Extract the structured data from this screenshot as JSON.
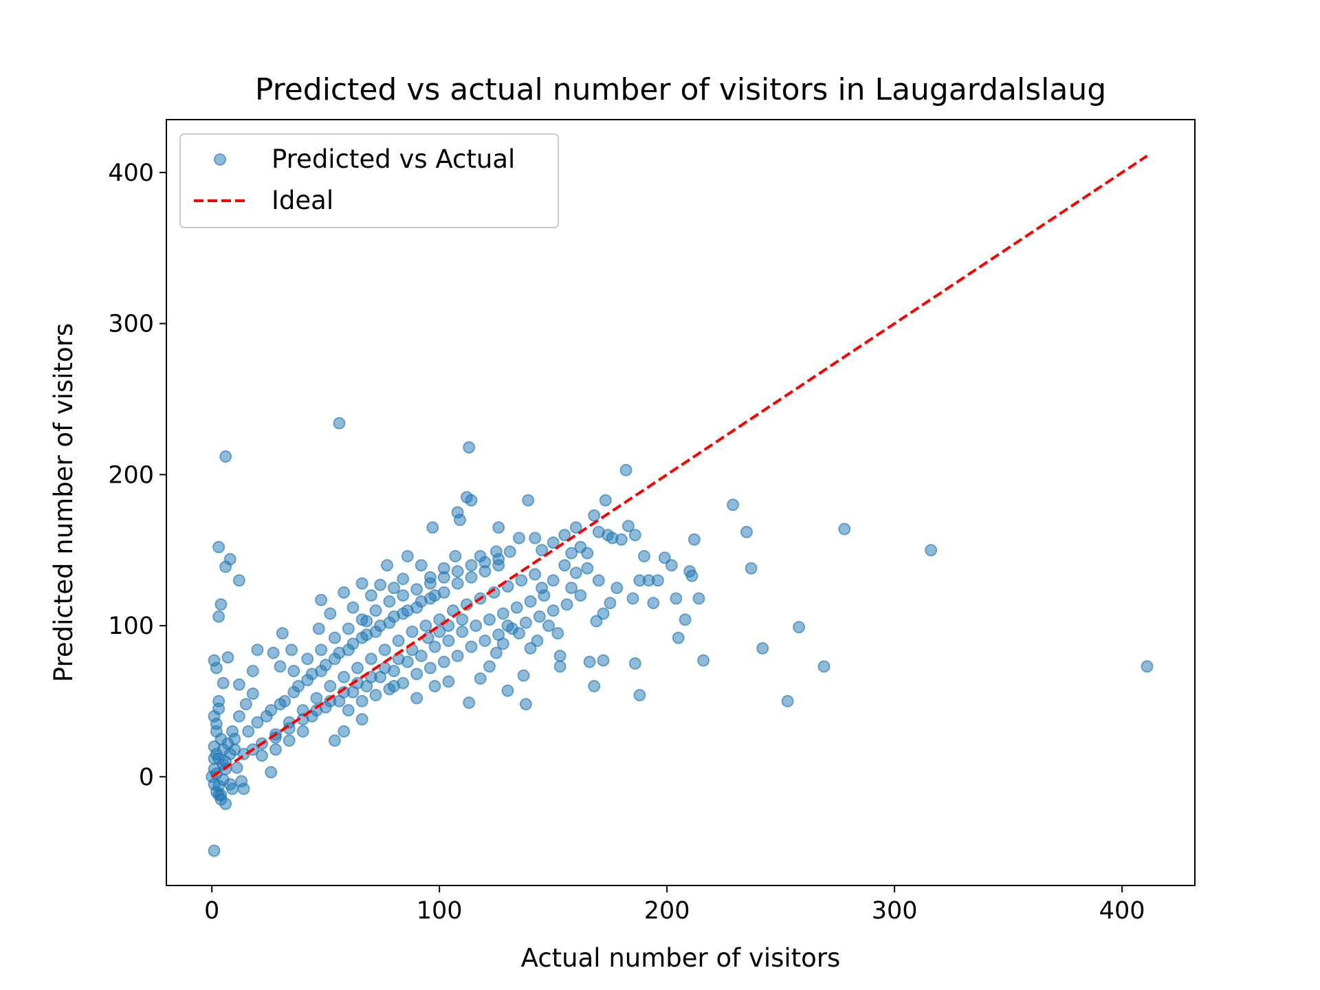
{
  "chart_data": {
    "type": "scatter",
    "title": "Predicted vs actual number of visitors in Laugardalslaug",
    "xlabel": "Actual number of visitors",
    "ylabel": "Predicted number of visitors",
    "xlim": [
      -20,
      432
    ],
    "ylim": [
      -72,
      435
    ],
    "xticks": [
      0,
      100,
      200,
      300,
      400
    ],
    "yticks": [
      0,
      100,
      200,
      300,
      400
    ],
    "legend_location": "upper-left",
    "grid": false,
    "series": [
      {
        "name": "Predicted vs Actual",
        "kind": "scatter",
        "color": "#1f77b4",
        "alpha": 0.5,
        "points": [
          [
            56,
            234
          ],
          [
            113,
            218
          ],
          [
            6,
            212
          ],
          [
            182,
            203
          ],
          [
            112,
            185
          ],
          [
            114,
            183
          ],
          [
            139,
            183
          ],
          [
            173,
            183
          ],
          [
            229,
            180
          ],
          [
            3,
            152
          ],
          [
            8,
            144
          ],
          [
            6,
            139
          ],
          [
            12,
            130
          ],
          [
            4,
            114
          ],
          [
            3,
            106
          ],
          [
            1,
            77
          ],
          [
            7,
            79
          ],
          [
            2,
            72
          ],
          [
            18,
            70
          ],
          [
            12,
            61
          ],
          [
            5,
            62
          ],
          [
            1,
            -49
          ],
          [
            2,
            -10
          ],
          [
            4,
            -15
          ],
          [
            6,
            -18
          ],
          [
            3,
            -6
          ],
          [
            1,
            20
          ],
          [
            2,
            35
          ],
          [
            3,
            50
          ],
          [
            1,
            5
          ],
          [
            5,
            8
          ],
          [
            8,
            -5
          ],
          [
            13,
            -3
          ],
          [
            14,
            -8
          ],
          [
            20,
            84
          ],
          [
            27,
            82
          ],
          [
            30,
            73
          ],
          [
            26,
            3
          ],
          [
            35,
            84
          ],
          [
            31,
            95
          ],
          [
            47,
            98
          ],
          [
            48,
            117
          ],
          [
            52,
            108
          ],
          [
            58,
            122
          ],
          [
            62,
            112
          ],
          [
            66,
            128
          ],
          [
            70,
            120
          ],
          [
            68,
            103
          ],
          [
            74,
            127
          ],
          [
            77,
            140
          ],
          [
            80,
            125
          ],
          [
            84,
            131
          ],
          [
            86,
            146
          ],
          [
            92,
            140
          ],
          [
            96,
            132
          ],
          [
            97,
            165
          ],
          [
            102,
            138
          ],
          [
            107,
            146
          ],
          [
            108,
            175
          ],
          [
            109,
            170
          ],
          [
            118,
            146
          ],
          [
            125,
            149
          ],
          [
            126,
            165
          ],
          [
            131,
            149
          ],
          [
            135,
            158
          ],
          [
            142,
            158
          ],
          [
            145,
            150
          ],
          [
            150,
            155
          ],
          [
            155,
            160
          ],
          [
            158,
            148
          ],
          [
            160,
            165
          ],
          [
            162,
            152
          ],
          [
            165,
            148
          ],
          [
            170,
            162
          ],
          [
            174,
            160
          ],
          [
            176,
            158
          ],
          [
            168,
            173
          ],
          [
            180,
            157
          ],
          [
            183,
            166
          ],
          [
            186,
            160
          ],
          [
            190,
            146
          ],
          [
            196,
            130
          ],
          [
            199,
            145
          ],
          [
            192,
            130
          ],
          [
            194,
            115
          ],
          [
            202,
            140
          ],
          [
            204,
            118
          ],
          [
            205,
            92
          ],
          [
            210,
            136
          ],
          [
            211,
            133
          ],
          [
            212,
            157
          ],
          [
            214,
            118
          ],
          [
            208,
            104
          ],
          [
            216,
            77
          ],
          [
            235,
            162
          ],
          [
            237,
            138
          ],
          [
            242,
            85
          ],
          [
            253,
            50
          ],
          [
            258,
            99
          ],
          [
            269,
            73
          ],
          [
            278,
            164
          ],
          [
            316,
            150
          ],
          [
            411,
            73
          ],
          [
            175,
            115
          ],
          [
            172,
            108
          ],
          [
            178,
            125
          ],
          [
            169,
            103
          ],
          [
            185,
            118
          ],
          [
            188,
            130
          ],
          [
            186,
            75
          ],
          [
            188,
            54
          ],
          [
            172,
            77
          ],
          [
            166,
            76
          ],
          [
            168,
            60
          ],
          [
            153,
            80
          ],
          [
            153,
            73
          ],
          [
            138,
            48
          ],
          [
            130,
            57
          ],
          [
            137,
            67
          ],
          [
            125,
            82
          ],
          [
            122,
            73
          ],
          [
            118,
            65
          ],
          [
            113,
            49
          ],
          [
            104,
            63
          ],
          [
            98,
            60
          ],
          [
            90,
            52
          ],
          [
            80,
            60
          ],
          [
            66,
            38
          ],
          [
            58,
            30
          ],
          [
            54,
            24
          ],
          [
            40,
            30
          ],
          [
            34,
            24
          ],
          [
            28,
            18
          ],
          [
            22,
            14
          ],
          [
            24,
            40
          ],
          [
            30,
            48
          ],
          [
            36,
            56
          ],
          [
            42,
            64
          ],
          [
            48,
            70
          ],
          [
            54,
            78
          ],
          [
            60,
            84
          ],
          [
            66,
            92
          ],
          [
            72,
            96
          ],
          [
            78,
            102
          ],
          [
            84,
            108
          ],
          [
            90,
            112
          ],
          [
            96,
            118
          ],
          [
            102,
            122
          ],
          [
            108,
            128
          ],
          [
            114,
            132
          ],
          [
            120,
            136
          ],
          [
            126,
            140
          ],
          [
            28,
            28
          ],
          [
            34,
            36
          ],
          [
            40,
            44
          ],
          [
            46,
            52
          ],
          [
            52,
            60
          ],
          [
            58,
            66
          ],
          [
            64,
            72
          ],
          [
            70,
            78
          ],
          [
            76,
            84
          ],
          [
            82,
            90
          ],
          [
            88,
            96
          ],
          [
            94,
            100
          ],
          [
            100,
            104
          ],
          [
            106,
            110
          ],
          [
            112,
            114
          ],
          [
            118,
            118
          ],
          [
            124,
            122
          ],
          [
            130,
            126
          ],
          [
            136,
            130
          ],
          [
            142,
            134
          ],
          [
            44,
            40
          ],
          [
            50,
            46
          ],
          [
            56,
            50
          ],
          [
            62,
            56
          ],
          [
            68,
            60
          ],
          [
            74,
            66
          ],
          [
            80,
            70
          ],
          [
            86,
            76
          ],
          [
            92,
            80
          ],
          [
            98,
            86
          ],
          [
            104,
            90
          ],
          [
            110,
            96
          ],
          [
            116,
            100
          ],
          [
            122,
            104
          ],
          [
            128,
            108
          ],
          [
            134,
            112
          ],
          [
            140,
            116
          ],
          [
            146,
            120
          ],
          [
            60,
            44
          ],
          [
            66,
            50
          ],
          [
            72,
            54
          ],
          [
            78,
            58
          ],
          [
            84,
            62
          ],
          [
            90,
            68
          ],
          [
            96,
            72
          ],
          [
            102,
            76
          ],
          [
            108,
            80
          ],
          [
            114,
            86
          ],
          [
            120,
            90
          ],
          [
            126,
            94
          ],
          [
            132,
            98
          ],
          [
            138,
            102
          ],
          [
            144,
            106
          ],
          [
            150,
            110
          ],
          [
            156,
            114
          ],
          [
            36,
            70
          ],
          [
            42,
            78
          ],
          [
            48,
            84
          ],
          [
            54,
            92
          ],
          [
            60,
            98
          ],
          [
            66,
            104
          ],
          [
            72,
            110
          ],
          [
            78,
            116
          ],
          [
            84,
            120
          ],
          [
            90,
            124
          ],
          [
            96,
            128
          ],
          [
            102,
            132
          ],
          [
            108,
            136
          ],
          [
            114,
            140
          ],
          [
            120,
            142
          ],
          [
            126,
            144
          ],
          [
            20,
            36
          ],
          [
            26,
            44
          ],
          [
            32,
            50
          ],
          [
            38,
            60
          ],
          [
            44,
            68
          ],
          [
            50,
            74
          ],
          [
            56,
            82
          ],
          [
            62,
            88
          ],
          [
            68,
            94
          ],
          [
            74,
            100
          ],
          [
            80,
            106
          ],
          [
            86,
            110
          ],
          [
            92,
            116
          ],
          [
            98,
            120
          ],
          [
            150,
            130
          ],
          [
            155,
            140
          ],
          [
            160,
            135
          ],
          [
            162,
            120
          ],
          [
            158,
            125
          ],
          [
            165,
            138
          ],
          [
            170,
            130
          ],
          [
            145,
            125
          ],
          [
            148,
            100
          ],
          [
            152,
            95
          ],
          [
            143,
            90
          ],
          [
            140,
            85
          ],
          [
            135,
            95
          ],
          [
            130,
            100
          ],
          [
            128,
            88
          ],
          [
            100,
            96
          ],
          [
            104,
            100
          ],
          [
            110,
            104
          ],
          [
            95,
            92
          ],
          [
            88,
            84
          ],
          [
            82,
            78
          ],
          [
            76,
            72
          ],
          [
            70,
            66
          ],
          [
            64,
            62
          ],
          [
            58,
            56
          ],
          [
            52,
            50
          ],
          [
            46,
            44
          ],
          [
            40,
            38
          ],
          [
            34,
            32
          ],
          [
            28,
            26
          ],
          [
            22,
            22
          ],
          [
            18,
            18
          ],
          [
            2,
            2
          ],
          [
            3,
            12
          ],
          [
            4,
            25
          ],
          [
            1,
            40
          ],
          [
            5,
            -2
          ],
          [
            6,
            10
          ],
          [
            7,
            22
          ],
          [
            9,
            30
          ],
          [
            10,
            18
          ],
          [
            11,
            6
          ],
          [
            12,
            40
          ],
          [
            15,
            48
          ],
          [
            16,
            30
          ],
          [
            18,
            55
          ],
          [
            14,
            15
          ],
          [
            0,
            0
          ],
          [
            1,
            -5
          ],
          [
            2,
            30
          ],
          [
            3,
            45
          ],
          [
            4,
            -12
          ],
          [
            6,
            5
          ],
          [
            8,
            15
          ],
          [
            9,
            -8
          ],
          [
            10,
            25
          ],
          [
            1,
            12
          ],
          [
            2,
            15
          ],
          [
            3,
            -12
          ],
          [
            5,
            18
          ]
        ]
      },
      {
        "name": "Ideal",
        "kind": "line",
        "style": "dashed",
        "color": "#ff0000",
        "points": [
          [
            0,
            0
          ],
          [
            411,
            411
          ]
        ]
      }
    ]
  }
}
